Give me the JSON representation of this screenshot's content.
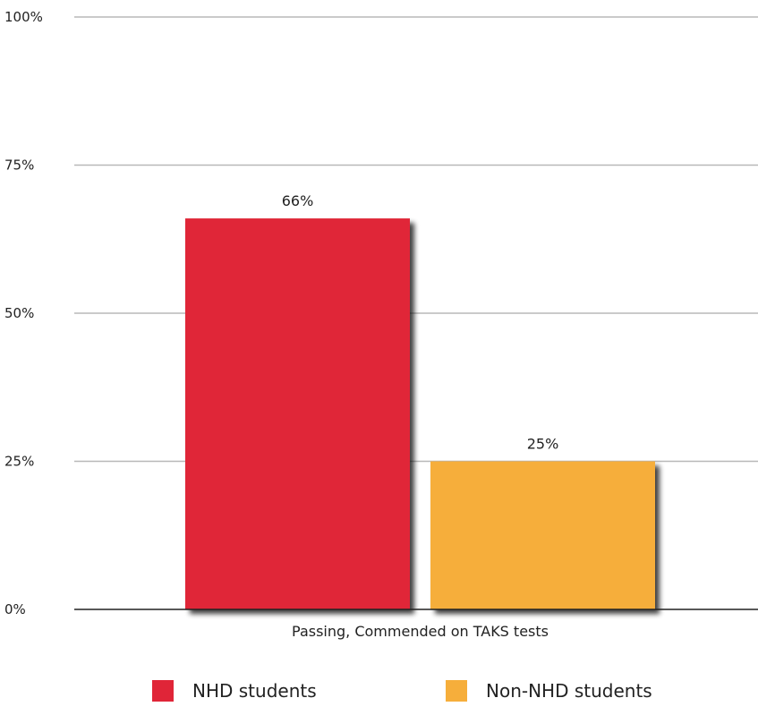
{
  "chart_data": {
    "type": "bar",
    "categories": [
      "Passing, Commended on TAKS tests"
    ],
    "series": [
      {
        "name": "NHD students",
        "values": [
          66
        ],
        "color": "#e02538",
        "label": "66%"
      },
      {
        "name": "Non-NHD students",
        "values": [
          25
        ],
        "color": "#f6ae3b",
        "label": "25%"
      }
    ],
    "ylim": [
      0,
      100
    ],
    "yticks": [
      0,
      25,
      50,
      75,
      100
    ],
    "ytick_labels": [
      "0%",
      "25%",
      "50%",
      "75%",
      "100%"
    ],
    "grid": true,
    "legend": "bottom"
  }
}
